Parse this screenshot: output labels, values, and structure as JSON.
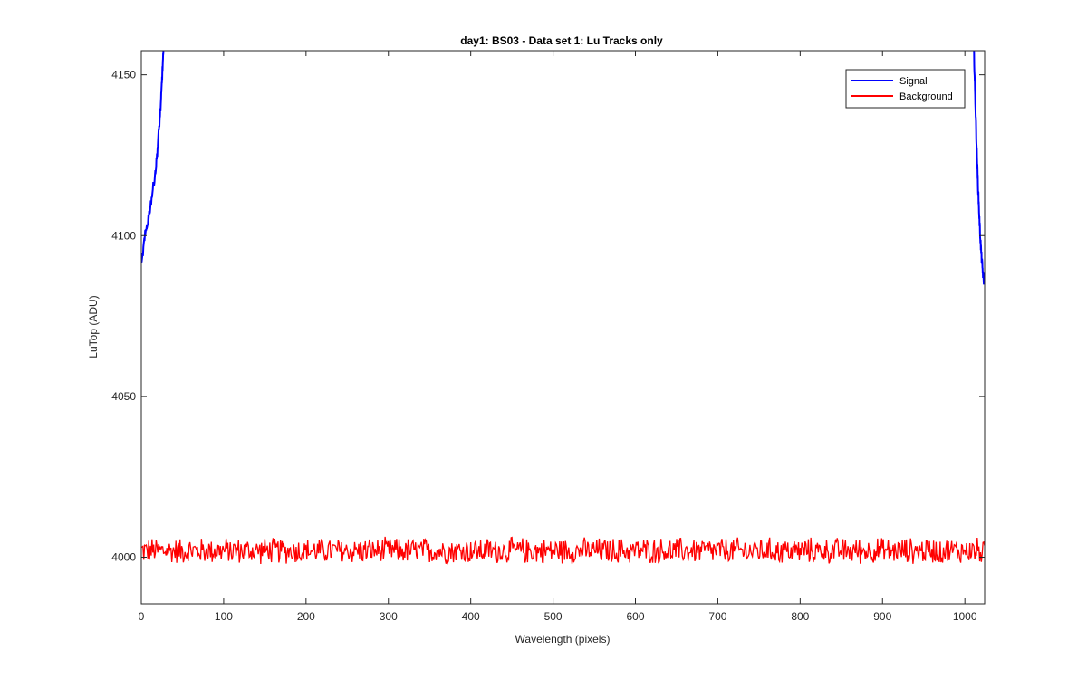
{
  "chart_data": {
    "type": "line",
    "title": "day1: BS03 - Data set 1: Lu Tracks only",
    "xlabel": "Wavelength (pixels)",
    "ylabel": "LuTop (ADU)",
    "xlim": [
      0,
      1024
    ],
    "ylim": [
      3985.5,
      4157.5
    ],
    "xticks": [
      0,
      100,
      200,
      300,
      400,
      500,
      600,
      700,
      800,
      900,
      1000
    ],
    "yticks": [
      4000,
      4050,
      4100,
      4150
    ],
    "grid": false,
    "legend_location": "top-right",
    "series": [
      {
        "name": "Signal",
        "color": "#0000ff",
        "segments": [
          {
            "x": [
              0,
              3,
              6,
              9,
              12,
              15,
              18,
              20,
              22,
              24,
              25,
              26,
              27
            ],
            "y": [
              4090,
              4097,
              4102,
              4106,
              4111,
              4116,
              4122,
              4128,
              4135,
              4142,
              4148,
              4153,
              4157.5
            ]
          },
          {
            "x": [
              1011,
              1012,
              1013,
              1014,
              1015,
              1016,
              1017,
              1018,
              1019,
              1020,
              1021,
              1022,
              1023,
              1024
            ],
            "y": [
              4157.5,
              4148,
              4139,
              4130,
              4122,
              4115,
              4109,
              4103,
              4098,
              4094,
              4091,
              4088,
              4086,
              4087
            ]
          }
        ],
        "noise_amplitude": 1.5
      },
      {
        "name": "Background",
        "color": "#ff0000",
        "x_range": [
          0,
          1024
        ],
        "mean": 4002,
        "range": [
          3995.5,
          4007.5
        ],
        "noise_amplitude": 4.5
      }
    ]
  }
}
